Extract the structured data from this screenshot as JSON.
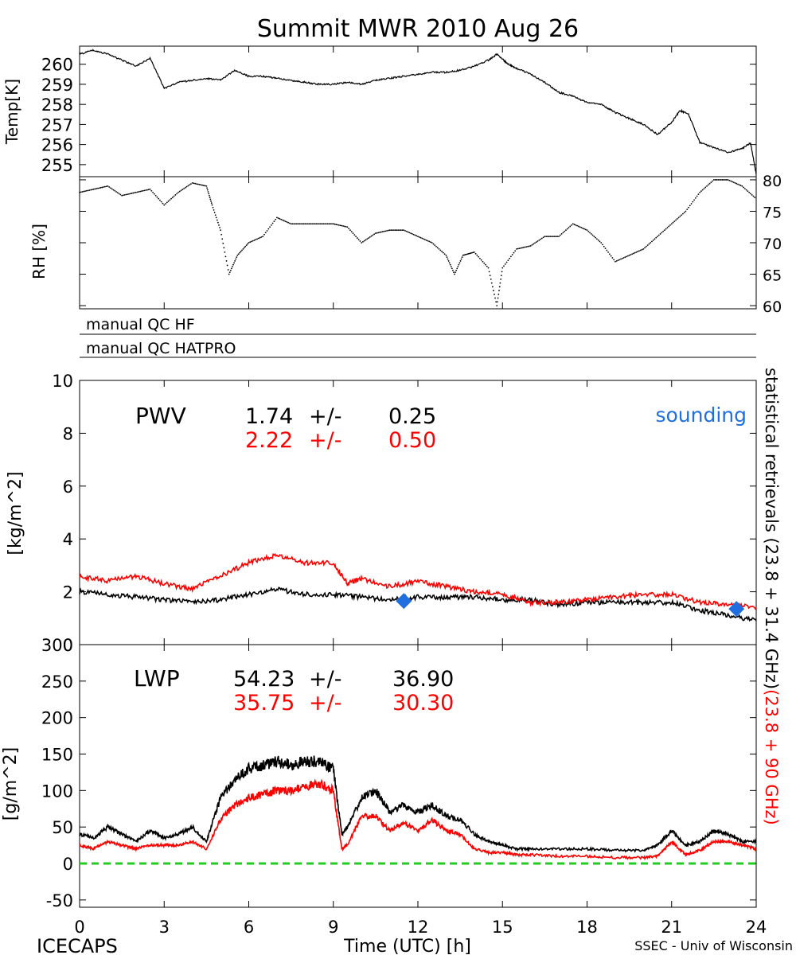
{
  "title": "Summit MWR 2010 Aug 26",
  "footer": {
    "left": "ICECAPS",
    "right": "SSEC - Univ of Wisconsin"
  },
  "right_annotation": {
    "black": "statistical retrievals (23.8 + 31.4 GHz)",
    "red": "(23.8 + 90 GHz)"
  },
  "colors": {
    "black": "#000000",
    "red": "#ff0000",
    "sounding": "#1f6fe0",
    "zero_line": "#22cc22"
  },
  "chart_data": [
    {
      "id": "temp",
      "type": "line",
      "ylabel": "Temp[K]",
      "yticks": [
        "260",
        "259",
        "258",
        "257",
        "256",
        "255"
      ],
      "ylim": [
        254.4,
        260.9
      ],
      "xlim": [
        0,
        24
      ],
      "series": [
        {
          "color": "black",
          "x": [
            0,
            0.5,
            1,
            1.5,
            2,
            2.5,
            3,
            3.5,
            4,
            4.5,
            5,
            5.5,
            6,
            6.5,
            7,
            7.5,
            8,
            8.5,
            9,
            9.5,
            10,
            10.5,
            11,
            11.5,
            12,
            12.5,
            13,
            13.5,
            14,
            14.5,
            14.8,
            15.2,
            15.5,
            16,
            16.5,
            17,
            17.5,
            18,
            18.5,
            19,
            19.5,
            20,
            20.5,
            21,
            21.3,
            21.6,
            22,
            22.4,
            23,
            23.5,
            23.8,
            24
          ],
          "y": [
            260.5,
            260.7,
            260.5,
            260.2,
            259.9,
            260.3,
            258.8,
            259.1,
            259.2,
            259.3,
            259.2,
            259.7,
            259.4,
            259.4,
            259.3,
            259.2,
            259.1,
            259.0,
            259.0,
            259.1,
            259.0,
            259.2,
            259.3,
            259.4,
            259.5,
            259.6,
            259.6,
            259.7,
            259.9,
            260.2,
            260.5,
            260.0,
            259.8,
            259.5,
            259.1,
            258.6,
            258.4,
            258.1,
            258.0,
            257.6,
            257.3,
            257.0,
            256.5,
            257.1,
            257.7,
            257.5,
            256.1,
            255.9,
            255.6,
            255.8,
            256.1,
            254.5
          ]
        }
      ]
    },
    {
      "id": "rh",
      "type": "scatter",
      "ylabel": "RH [%]",
      "yticks": [
        "80",
        "75",
        "70",
        "65",
        "60"
      ],
      "ylim": [
        59.5,
        80.5
      ],
      "xlim": [
        0,
        24
      ],
      "series": [
        {
          "color": "black",
          "x": [
            0,
            0.5,
            1,
            1.5,
            2,
            2.5,
            3,
            3.5,
            4,
            4.5,
            4.7,
            5,
            5.3,
            5.6,
            6,
            6.5,
            7,
            7.5,
            8,
            8.5,
            9,
            9.5,
            10,
            10.5,
            11,
            11.5,
            12,
            12.5,
            13,
            13.3,
            13.6,
            14,
            14.5,
            14.8,
            15,
            15.5,
            16,
            16.5,
            17,
            17.5,
            18,
            18.5,
            19,
            19.5,
            20,
            20.5,
            21,
            21.5,
            22,
            22.5,
            23,
            23.5,
            24
          ],
          "y": [
            78,
            78.5,
            79,
            77.5,
            78,
            78.5,
            76,
            78,
            79.5,
            79,
            76,
            72,
            65,
            68,
            70,
            71,
            74,
            73,
            73,
            73,
            73,
            72.5,
            70,
            71.5,
            72,
            72,
            71,
            70,
            68,
            65,
            68,
            68.5,
            66,
            60,
            66,
            69,
            69.5,
            71,
            71,
            73,
            72,
            70,
            67,
            68,
            69,
            71,
            73,
            75,
            78,
            80,
            80,
            79,
            77
          ]
        }
      ]
    },
    {
      "id": "pwv",
      "type": "line",
      "label": "PWV",
      "ylabel": "[kg/m^2]",
      "yticks": [
        "10",
        "8",
        "6",
        "4",
        "2",
        "0"
      ],
      "ylim": [
        0,
        10
      ],
      "xlim": [
        0,
        24
      ],
      "stats": [
        {
          "color": "black",
          "mean": "1.74",
          "pm": "+/-",
          "sd": "0.25"
        },
        {
          "color": "red",
          "mean": "2.22",
          "pm": "+/-",
          "sd": "0.50"
        }
      ],
      "series": [
        {
          "color": "black",
          "x": [
            0,
            1,
            2,
            3,
            4,
            5,
            6,
            7,
            8,
            9,
            10,
            11,
            12,
            13,
            14,
            15,
            16,
            17,
            18,
            19,
            20,
            21,
            22,
            23,
            24
          ],
          "y": [
            2.0,
            1.9,
            1.8,
            1.7,
            1.6,
            1.7,
            1.9,
            2.1,
            1.9,
            1.9,
            1.8,
            1.7,
            1.8,
            1.8,
            1.8,
            1.7,
            1.7,
            1.5,
            1.6,
            1.6,
            1.6,
            1.6,
            1.3,
            1.1,
            0.9
          ]
        },
        {
          "color": "red",
          "x": [
            0,
            1,
            2,
            3,
            4,
            5,
            6,
            7,
            8,
            9,
            9.5,
            10,
            11,
            12,
            13,
            14,
            15,
            16,
            17,
            18,
            19,
            20,
            21,
            22,
            23,
            24
          ],
          "y": [
            2.6,
            2.4,
            2.6,
            2.3,
            2.1,
            2.6,
            3.1,
            3.4,
            3.1,
            3.1,
            2.3,
            2.5,
            2.2,
            2.4,
            2.2,
            2.0,
            1.9,
            1.6,
            1.6,
            1.7,
            1.8,
            1.9,
            1.9,
            1.6,
            1.5,
            1.4
          ]
        }
      ],
      "sounding": {
        "label": "sounding",
        "x": [
          11.5,
          23.3
        ],
        "y": [
          1.65,
          1.35
        ]
      }
    },
    {
      "id": "lwp",
      "type": "line",
      "label": "LWP",
      "ylabel": "[g/m^2]",
      "yticks": [
        "300",
        "250",
        "200",
        "150",
        "100",
        "50",
        "0",
        "-50"
      ],
      "ylim": [
        -60,
        300
      ],
      "xlim": [
        0,
        24
      ],
      "xticks": [
        "0",
        "3",
        "6",
        "9",
        "12",
        "15",
        "18",
        "21",
        "24"
      ],
      "xlabel": "Time (UTC) [h]",
      "stats": [
        {
          "color": "black",
          "mean": "54.23",
          "pm": "+/-",
          "sd": "36.90"
        },
        {
          "color": "red",
          "mean": "35.75",
          "pm": "+/-",
          "sd": "30.30"
        }
      ],
      "series": [
        {
          "color": "black",
          "x": [
            0,
            0.5,
            1,
            1.5,
            2,
            2.5,
            3,
            3.5,
            4,
            4.5,
            5,
            5.5,
            6,
            6.5,
            7,
            7.5,
            8,
            8.5,
            9,
            9.3,
            9.5,
            10,
            10.5,
            11,
            11.5,
            12,
            12.5,
            13,
            13.5,
            14,
            14.5,
            15,
            15.5,
            16,
            17,
            18,
            19,
            20,
            20.5,
            21,
            21.5,
            22,
            22.5,
            23,
            23.5,
            24
          ],
          "y": [
            40,
            35,
            50,
            40,
            30,
            45,
            35,
            40,
            50,
            30,
            90,
            115,
            130,
            135,
            140,
            135,
            140,
            140,
            130,
            40,
            50,
            90,
            100,
            70,
            80,
            70,
            80,
            65,
            60,
            40,
            30,
            25,
            20,
            20,
            20,
            20,
            18,
            18,
            25,
            45,
            25,
            30,
            45,
            40,
            30,
            30
          ]
        },
        {
          "color": "red",
          "x": [
            0,
            0.5,
            1,
            1.5,
            2,
            2.5,
            3,
            3.5,
            4,
            4.5,
            5,
            5.5,
            6,
            6.5,
            7,
            7.5,
            8,
            8.5,
            9,
            9.3,
            9.5,
            10,
            10.5,
            11,
            11.5,
            12,
            12.5,
            13,
            13.5,
            14,
            14.5,
            15,
            15.5,
            16,
            17,
            18,
            19,
            20,
            20.5,
            21,
            21.5,
            22,
            22.5,
            23,
            23.5,
            24
          ],
          "y": [
            25,
            20,
            30,
            25,
            20,
            25,
            25,
            25,
            30,
            20,
            60,
            80,
            90,
            95,
            100,
            100,
            105,
            110,
            100,
            20,
            25,
            65,
            65,
            45,
            55,
            45,
            60,
            45,
            40,
            20,
            15,
            15,
            12,
            12,
            10,
            10,
            8,
            8,
            10,
            30,
            12,
            18,
            30,
            30,
            25,
            20
          ]
        }
      ],
      "zero_line": 0
    }
  ]
}
